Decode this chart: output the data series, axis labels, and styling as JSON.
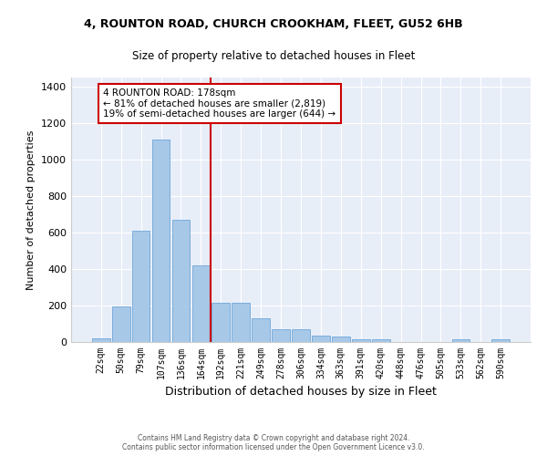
{
  "title": "4, ROUNTON ROAD, CHURCH CROOKHAM, FLEET, GU52 6HB",
  "subtitle": "Size of property relative to detached houses in Fleet",
  "xlabel": "Distribution of detached houses by size in Fleet",
  "ylabel": "Number of detached properties",
  "categories": [
    "22sqm",
    "50sqm",
    "79sqm",
    "107sqm",
    "136sqm",
    "164sqm",
    "192sqm",
    "221sqm",
    "249sqm",
    "278sqm",
    "306sqm",
    "334sqm",
    "363sqm",
    "391sqm",
    "420sqm",
    "448sqm",
    "476sqm",
    "505sqm",
    "533sqm",
    "562sqm",
    "590sqm"
  ],
  "values": [
    18,
    195,
    610,
    1110,
    670,
    420,
    215,
    215,
    130,
    72,
    72,
    35,
    28,
    14,
    14,
    0,
    0,
    0,
    14,
    0,
    14
  ],
  "bar_color": "#a8c8e8",
  "bar_edge_color": "#5b9bd5",
  "annotation_text_line1": "4 ROUNTON ROAD: 178sqm",
  "annotation_text_line2": "← 81% of detached houses are smaller (2,819)",
  "annotation_text_line3": "19% of semi-detached houses are larger (644) →",
  "annotation_box_color": "#cc0000",
  "vline_color": "#cc0000",
  "ylim": [
    0,
    1450
  ],
  "yticks": [
    0,
    200,
    400,
    600,
    800,
    1000,
    1200,
    1400
  ],
  "bg_color": "#e8eef8",
  "footer_line1": "Contains HM Land Registry data © Crown copyright and database right 2024.",
  "footer_line2": "Contains public sector information licensed under the Open Government Licence v3.0."
}
